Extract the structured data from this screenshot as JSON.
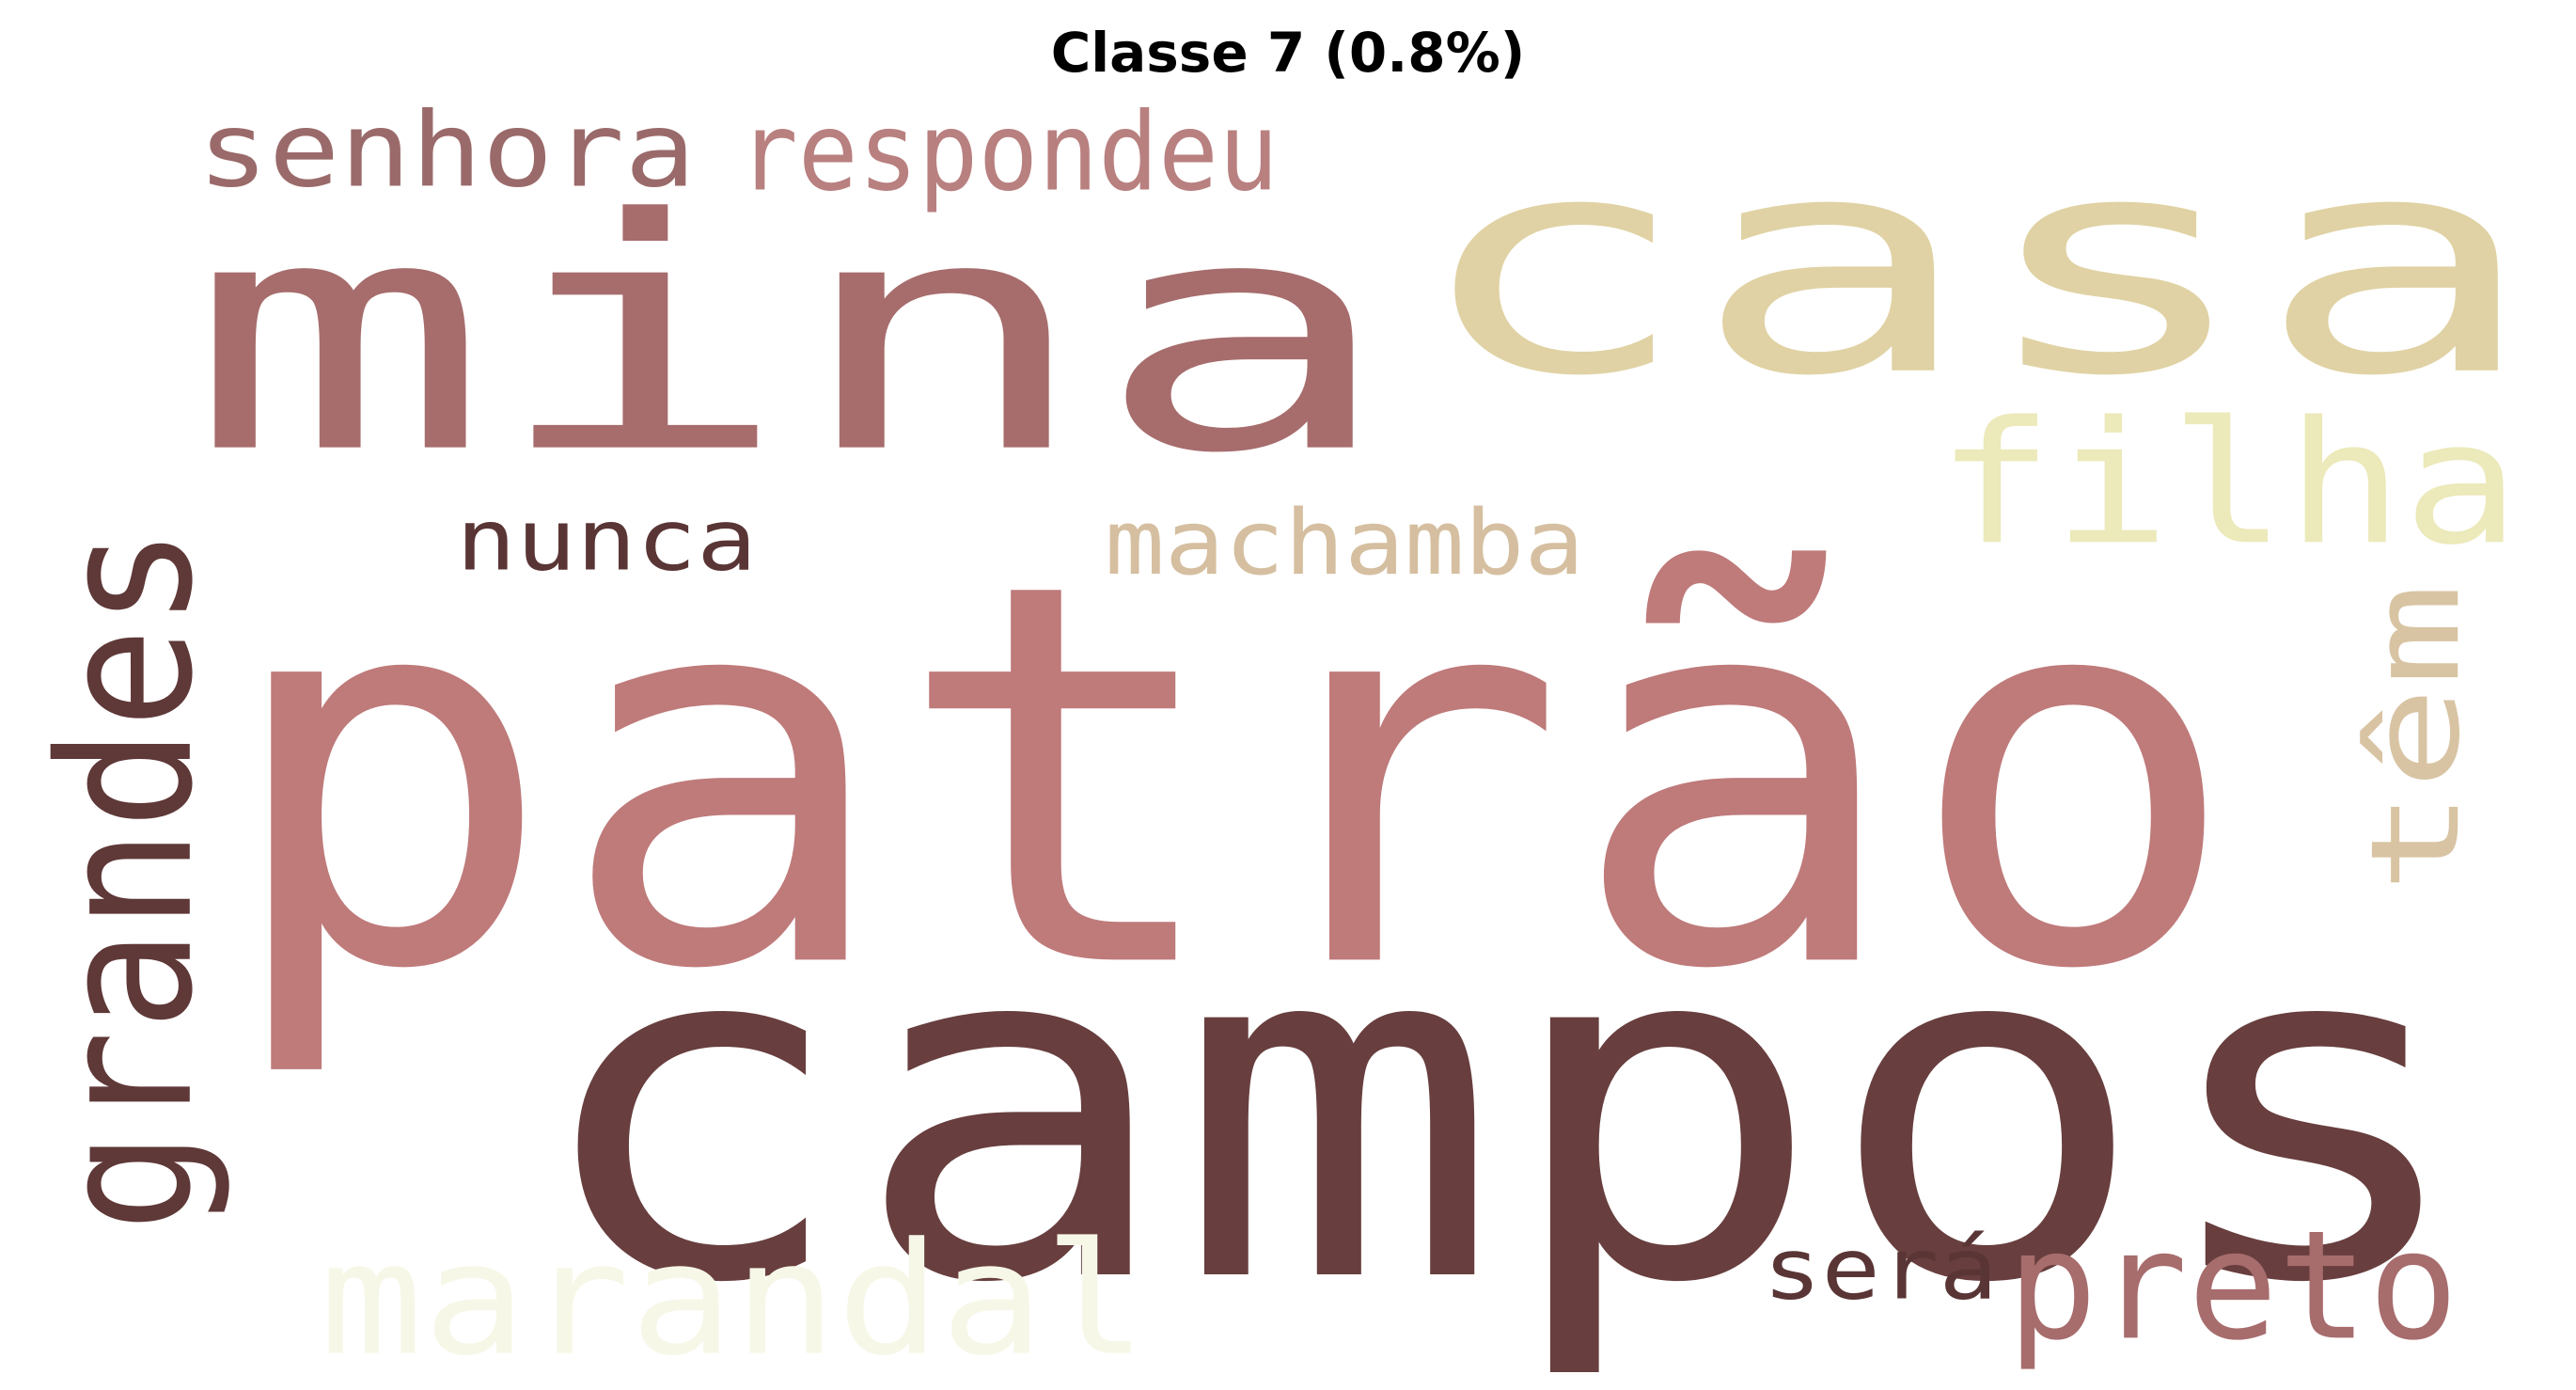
{
  "figure": {
    "title": "Classe 7 (0.8%)"
  },
  "word_cloud": {
    "palette": [
      "#683e3e",
      "#a76c6c",
      "#bf7a7a",
      "#e0d2a4",
      "#ece9ba",
      "#d5bfa0",
      "#f7f7e8"
    ],
    "words": [
      {
        "text": "campos",
        "color": "#683e3e",
        "orientation": "horizontal"
      },
      {
        "text": "patrão",
        "color": "#bf7a7a",
        "orientation": "horizontal"
      },
      {
        "text": "mina",
        "color": "#a76c6c",
        "orientation": "horizontal"
      },
      {
        "text": "casa",
        "color": "#e0d2a4",
        "orientation": "horizontal"
      },
      {
        "text": "filha",
        "color": "#ece9ba",
        "orientation": "horizontal"
      },
      {
        "text": "grandes",
        "color": "#5f3838",
        "orientation": "vertical"
      },
      {
        "text": "marandal",
        "color": "#f7f7e8",
        "orientation": "horizontal"
      },
      {
        "text": "preto",
        "color": "#a76c6c",
        "orientation": "horizontal"
      },
      {
        "text": "têm",
        "color": "#d8c4a3",
        "orientation": "vertical"
      },
      {
        "text": "machamba",
        "color": "#d5bfa0",
        "orientation": "horizontal"
      },
      {
        "text": "respondeu",
        "color": "#b98080",
        "orientation": "horizontal"
      },
      {
        "text": "senhora",
        "color": "#9a6a6a",
        "orientation": "horizontal"
      },
      {
        "text": "nunca",
        "color": "#5a3535",
        "orientation": "horizontal"
      },
      {
        "text": "será",
        "color": "#5a3535",
        "orientation": "horizontal"
      }
    ]
  }
}
